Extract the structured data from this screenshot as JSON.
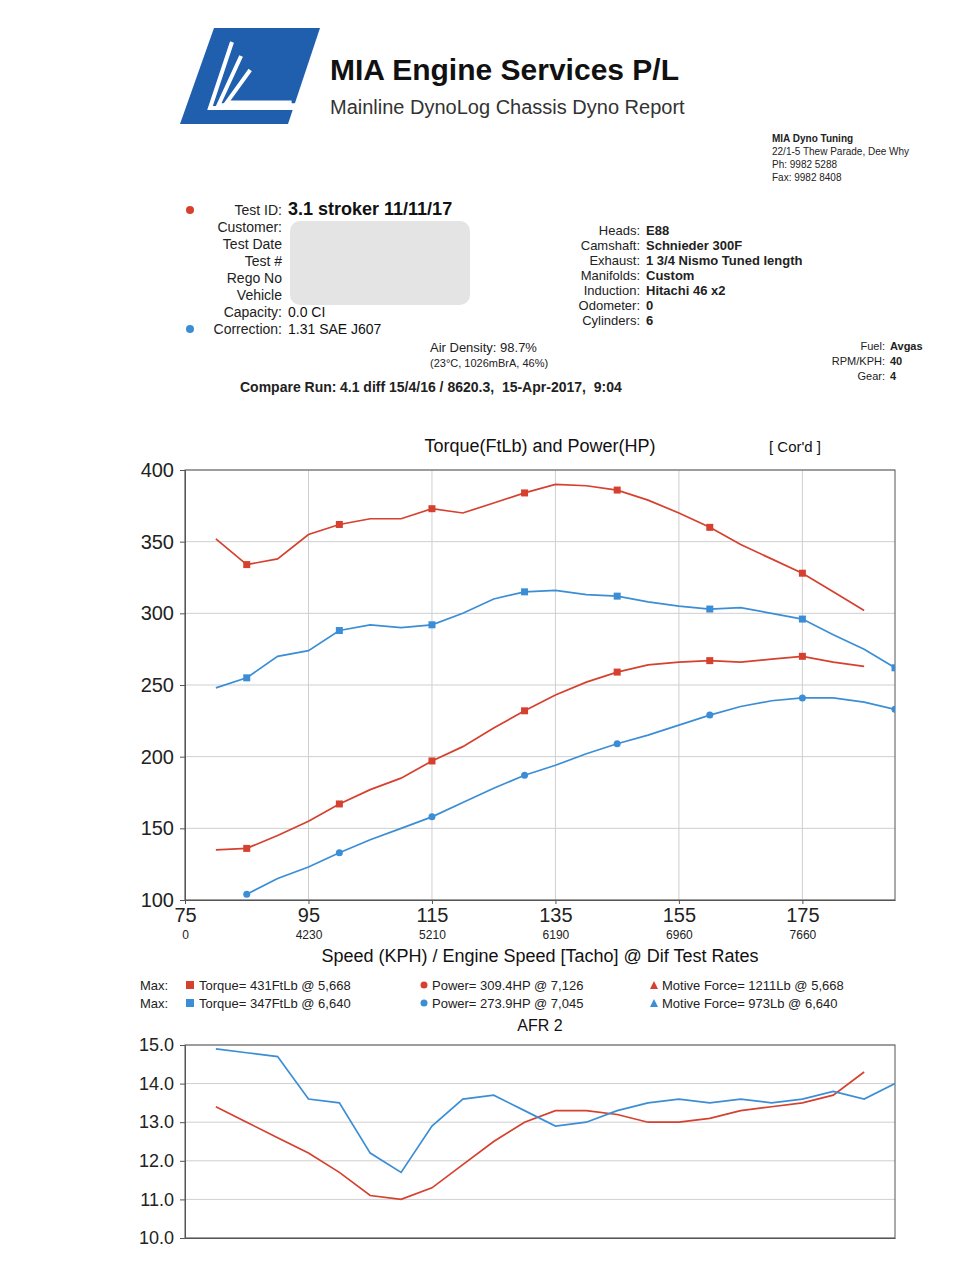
{
  "header": {
    "company": "MIA Engine Services P/L",
    "subtitle": "Mainline DynoLog Chassis Dyno Report",
    "contact": [
      "MIA Dyno Tuning",
      "22/1-5 Thew Parade, Dee Why",
      "Ph: 9982 5288",
      "Fax: 9982 8408"
    ]
  },
  "test_info": [
    {
      "label": "Test ID:",
      "value": "3.1 stroker 11/11/17"
    },
    {
      "label": "Customer:"
    },
    {
      "label": "Test Date"
    },
    {
      "label": "Test #"
    },
    {
      "label": "Rego No"
    },
    {
      "label": "Vehicle"
    },
    {
      "label": "Capacity:",
      "value": "0.0 CI"
    },
    {
      "label": "Correction:",
      "value": "1.31 SAE J607"
    }
  ],
  "conditions": {
    "air_density": "Air Density: 98.7%",
    "air_detail": "(23°C, 1026mBrA, 46%)",
    "compare_label": "Compare Run:",
    "compare": "4.1 diff 15/4/16 / 8620.3,  15-Apr-2017,  9:04"
  },
  "engine": [
    {
      "label": "Heads:",
      "value": "E88"
    },
    {
      "label": "Camshaft:",
      "value": "Schnieder 300F"
    },
    {
      "label": "Exhaust:",
      "value": "1 3/4 Nismo Tuned length"
    },
    {
      "label": "Manifolds:",
      "value": "Custom"
    },
    {
      "label": "Induction:",
      "value": "Hitachi 46 x2"
    },
    {
      "label": "Odometer:",
      "value": "0"
    },
    {
      "label": "Cylinders:",
      "value": "6"
    }
  ],
  "run": [
    {
      "label": "Fuel:",
      "value": "Avgas"
    },
    {
      "label": "RPM/KPH:",
      "value": "40"
    },
    {
      "label": "Gear:",
      "value": "4"
    }
  ],
  "chart_data": [
    {
      "type": "line",
      "title": "Torque(FtLb) and Power(HP)",
      "subtitle": "[ Cor'd ]",
      "x_label": "Speed (KPH) / Engine Speed [Tacho] @ Dif Test Rates",
      "x": [
        80,
        85,
        90,
        95,
        100,
        105,
        110,
        115,
        120,
        125,
        130,
        135,
        140,
        145,
        150,
        155,
        160,
        165,
        170,
        175,
        180,
        185,
        190
      ],
      "xlim": [
        75,
        190
      ],
      "xticks": [
        75,
        95,
        115,
        135,
        155,
        175
      ],
      "xtick_rpm": [
        "0",
        "4230",
        "5210",
        "6190",
        "6960",
        "7660"
      ],
      "ylim": [
        100,
        400
      ],
      "yticks": [
        100,
        150,
        200,
        250,
        300,
        350,
        400
      ],
      "grid": true,
      "series": [
        {
          "color": "#d6402e",
          "marker": "square",
          "values": [
            352,
            334,
            338,
            355,
            362,
            366,
            366,
            373,
            370,
            377,
            384,
            390,
            389,
            386,
            379,
            370,
            360,
            348,
            338,
            328,
            315,
            302,
            null
          ]
        },
        {
          "color": "#3b8ed6",
          "marker": "square",
          "values": [
            248,
            255,
            270,
            274,
            288,
            292,
            290,
            292,
            300,
            310,
            315,
            316,
            313,
            312,
            308,
            305,
            303,
            304,
            300,
            296,
            285,
            275,
            262
          ]
        },
        {
          "color": "#d6402e",
          "marker": "square",
          "values": [
            135,
            136,
            145,
            155,
            167,
            177,
            185,
            197,
            207,
            220,
            232,
            243,
            252,
            259,
            264,
            266,
            267,
            266,
            268,
            270,
            266,
            263,
            null
          ]
        },
        {
          "color": "#3b8ed6",
          "marker": "circle",
          "values": [
            null,
            104,
            115,
            123,
            133,
            142,
            150,
            158,
            168,
            178,
            187,
            194,
            202,
            209,
            215,
            222,
            229,
            235,
            239,
            241,
            241,
            238,
            233
          ]
        }
      ],
      "maxima": [
        {
          "prefix": "Max:",
          "color": "#d6402e",
          "torque": "Torque= 431FtLb @ 5,668",
          "power": "Power= 309.4HP @ 7,126",
          "force": "Motive Force= 1211Lb @ 5,668"
        },
        {
          "prefix": "Max:",
          "color": "#3b8ed6",
          "torque": "Torque= 347FtLb @ 6,640",
          "power": "Power= 273.9HP @ 7,045",
          "force": "Motive Force= 973Lb @ 6,640"
        }
      ]
    },
    {
      "type": "line",
      "title": "AFR 2",
      "x": [
        80,
        85,
        90,
        95,
        100,
        105,
        110,
        115,
        120,
        125,
        130,
        135,
        140,
        145,
        150,
        155,
        160,
        165,
        170,
        175,
        180,
        185,
        190
      ],
      "xlim": [
        75,
        190
      ],
      "ylim": [
        10,
        15
      ],
      "yticks": [
        {
          "value": 10,
          "label": "10.0"
        },
        {
          "value": 11,
          "label": "11.0"
        },
        {
          "value": 12,
          "label": "12.0"
        },
        {
          "value": 13,
          "label": "13.0"
        },
        {
          "value": 14,
          "label": "14.0"
        },
        {
          "value": 15,
          "label": "15.0"
        }
      ],
      "grid": true,
      "tick_labels": "y",
      "series": [
        {
          "color": "#d6402e",
          "values": [
            13.4,
            13.0,
            12.6,
            12.2,
            11.7,
            11.1,
            11.0,
            11.3,
            11.9,
            12.5,
            13.0,
            13.3,
            13.3,
            13.2,
            13.0,
            13.0,
            13.1,
            13.3,
            13.4,
            13.5,
            13.7,
            14.3,
            null
          ]
        },
        {
          "color": "#3b8ed6",
          "values": [
            14.9,
            14.8,
            14.7,
            13.6,
            13.5,
            12.2,
            11.7,
            12.9,
            13.6,
            13.7,
            13.3,
            12.9,
            13.0,
            13.3,
            13.5,
            13.6,
            13.5,
            13.6,
            13.5,
            13.6,
            13.8,
            13.6,
            14.0
          ]
        }
      ]
    }
  ]
}
